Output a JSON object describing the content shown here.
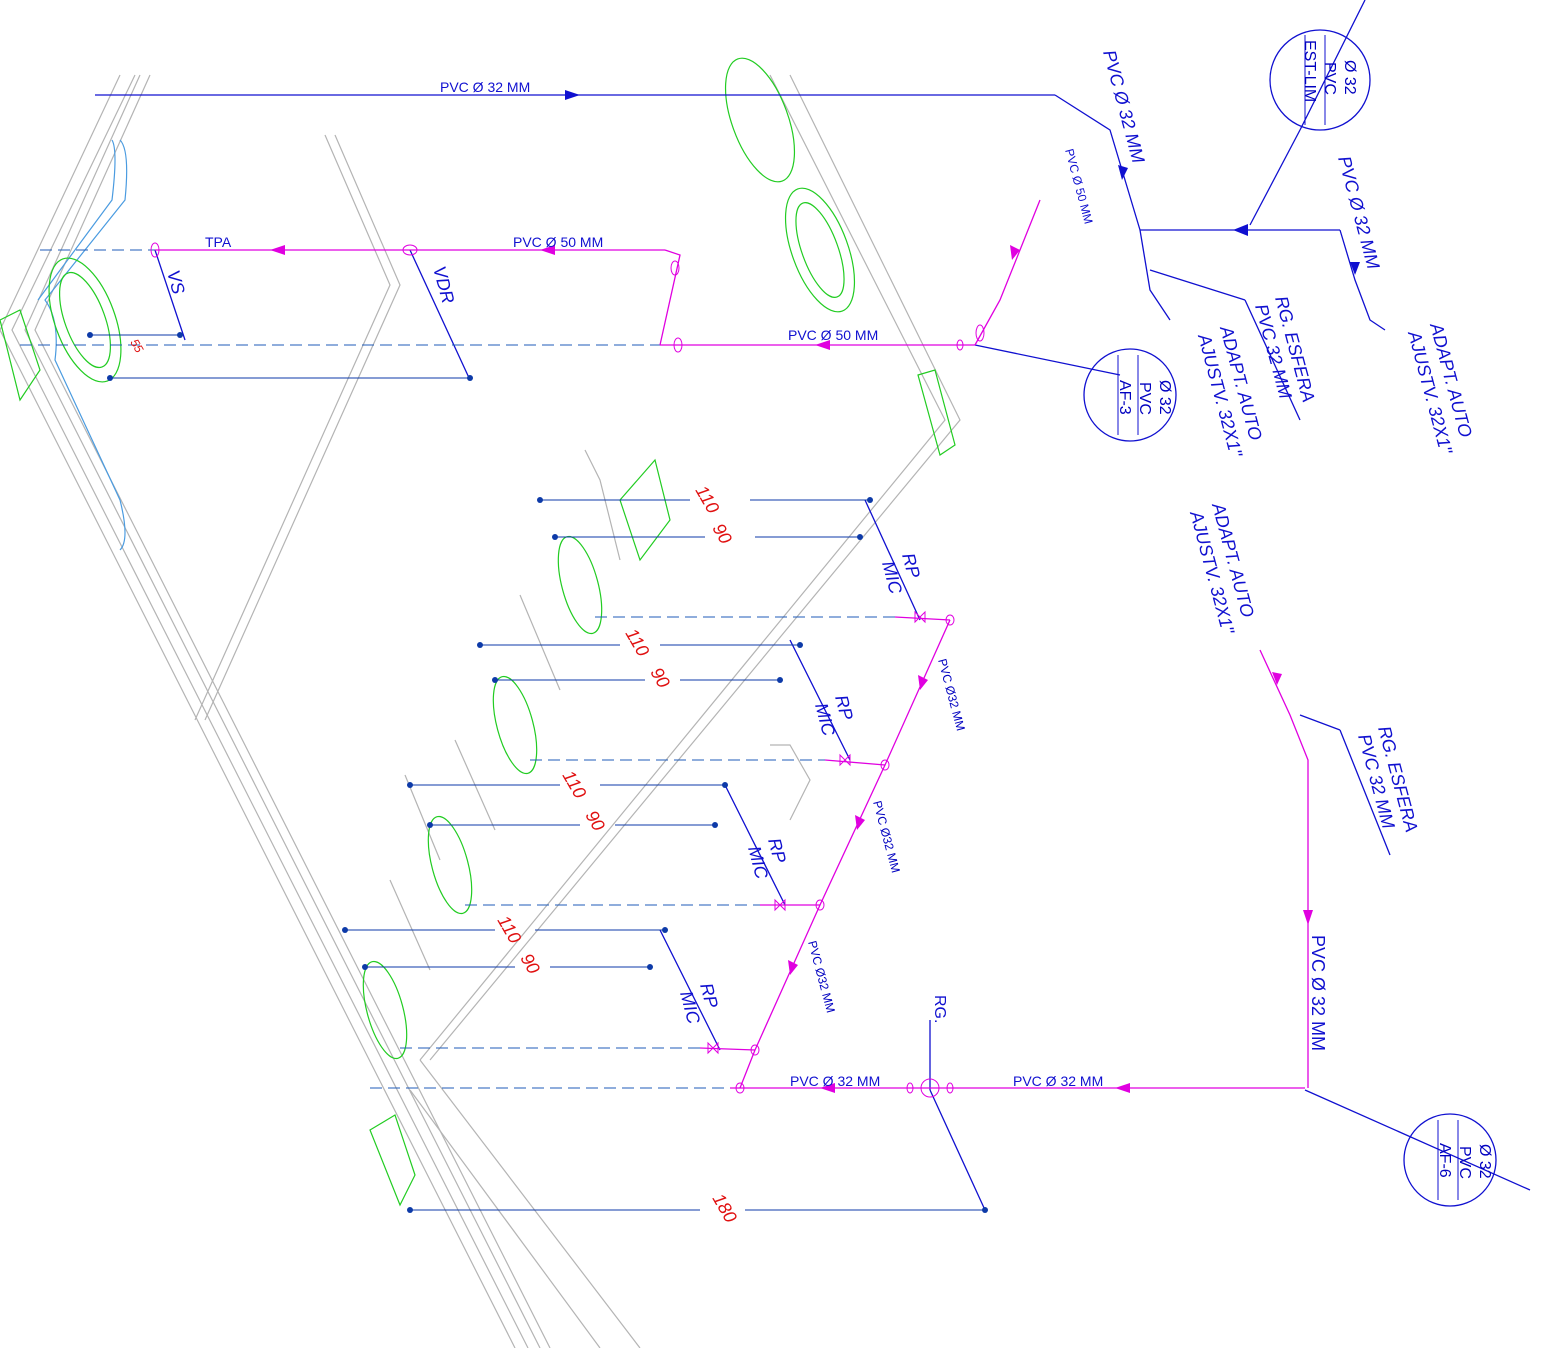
{
  "drawing": {
    "pipe_labels": {
      "top_main": "PVC   Ø 32 MM",
      "tpa": "TPA",
      "pvc50_top": "PVC   Ø 50 MM",
      "pvc50_mid": "PVC   Ø 50 MM",
      "pvc50_diag": "PVC Ø 50 MM",
      "pvc32_right_top": "PVC Ø 32 MM",
      "pvc32_far_right": "PVC Ø 32 MM",
      "pvc32_riser_1": "PVC Ø32 MM",
      "pvc32_riser_2": "PVC Ø32 MM",
      "pvc32_riser_3": "PVC Ø32 MM",
      "pvc32_bottom_left": "PVC   Ø 32 MM",
      "pvc32_bottom_right": "PVC Ø 32 MM",
      "pvc32_vertical_right": "PVC Ø 32 MM"
    },
    "tags": {
      "vs": "VS",
      "vdr": "VDR",
      "rg": "RG.",
      "rp_mic": [
        "RP",
        "MIC"
      ]
    },
    "annotations": {
      "rg_esfera_1": [
        "RG. ESFERA",
        "PVC 32 MM"
      ],
      "rg_esfera_2": [
        "RG. ESFERA",
        "PVC 32 MM"
      ],
      "adapt_auto_1": [
        "ADAPT. AUTO",
        "AJUSTV. 32X1\""
      ],
      "adapt_auto_2": [
        "ADAPT. AUTO",
        "AJUSTV. 32X1\""
      ],
      "adapt_auto_3": [
        "ADAPT. AUTO",
        "AJUSTV. 32X1\""
      ]
    },
    "bubbles": {
      "est_lim": [
        "EST-LIM",
        "PVC",
        "Ø 32"
      ],
      "af3": [
        "AF-3",
        "PVC",
        "Ø 32"
      ],
      "af6": [
        "AF-6",
        "PVC",
        "Ø 32"
      ]
    },
    "dimensions": {
      "d110": "110",
      "d90": "90",
      "d180": "180",
      "small_55": "55"
    },
    "colors": {
      "cold_water": "#1010d0",
      "drain": "#e000e0",
      "dimension_text": "#e01010",
      "fixture": "#22cc22",
      "wall": "#b4b4b4"
    }
  }
}
